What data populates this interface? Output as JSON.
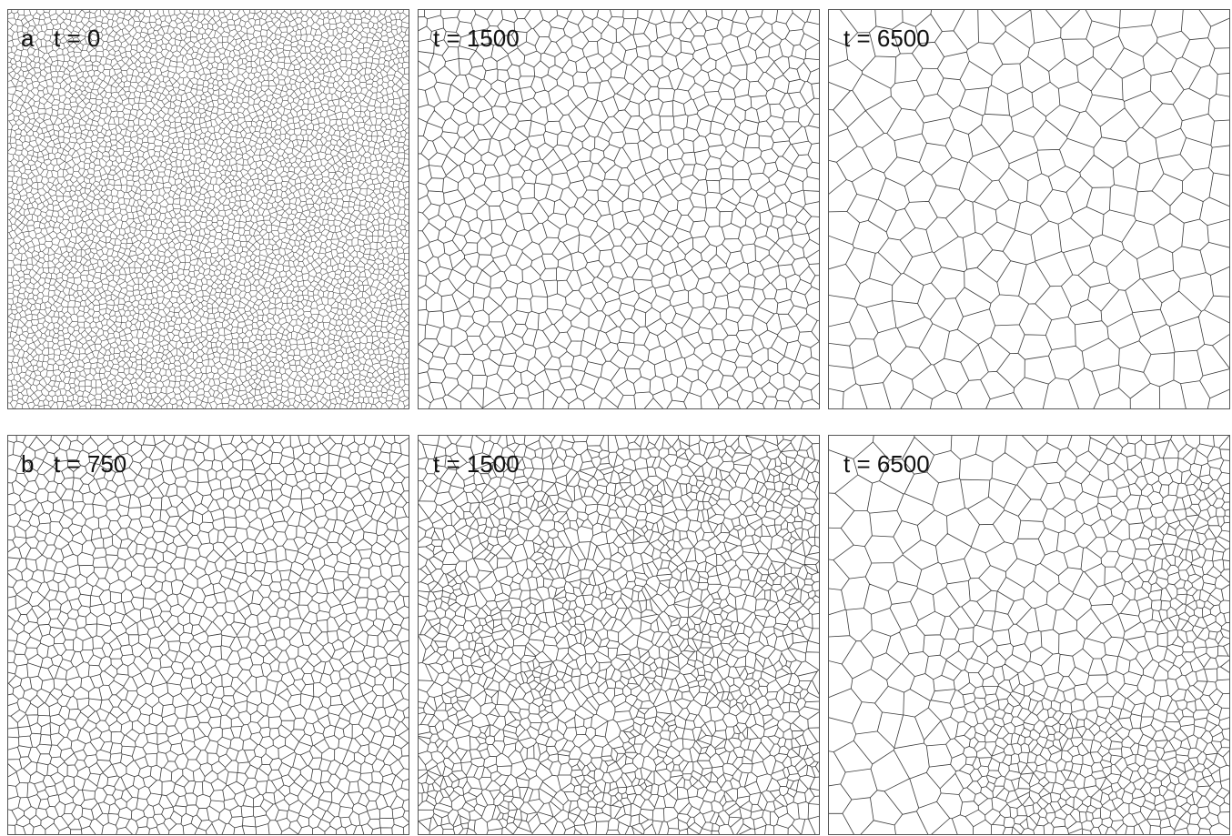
{
  "rows": [
    {
      "letter": "a",
      "panels": [
        {
          "time_label": "t = 0",
          "pattern": "uniform",
          "cell_count": 5200
        },
        {
          "time_label": "t = 1500",
          "pattern": "uniform",
          "cell_count": 900
        },
        {
          "time_label": "t = 6500",
          "pattern": "uniform",
          "cell_count": 250
        }
      ]
    },
    {
      "letter": "b",
      "panels": [
        {
          "time_label": "t = 750",
          "pattern": "uniform",
          "cell_count": 1500
        },
        {
          "time_label": "t = 1500",
          "pattern": "bimodal",
          "cell_count": 1400
        },
        {
          "time_label": "t = 6500",
          "pattern": "bimodal",
          "cell_count": 650
        }
      ]
    }
  ],
  "colors": {
    "boundary": "#3a3a3a",
    "frame": "#555555",
    "background": "#ffffff"
  }
}
